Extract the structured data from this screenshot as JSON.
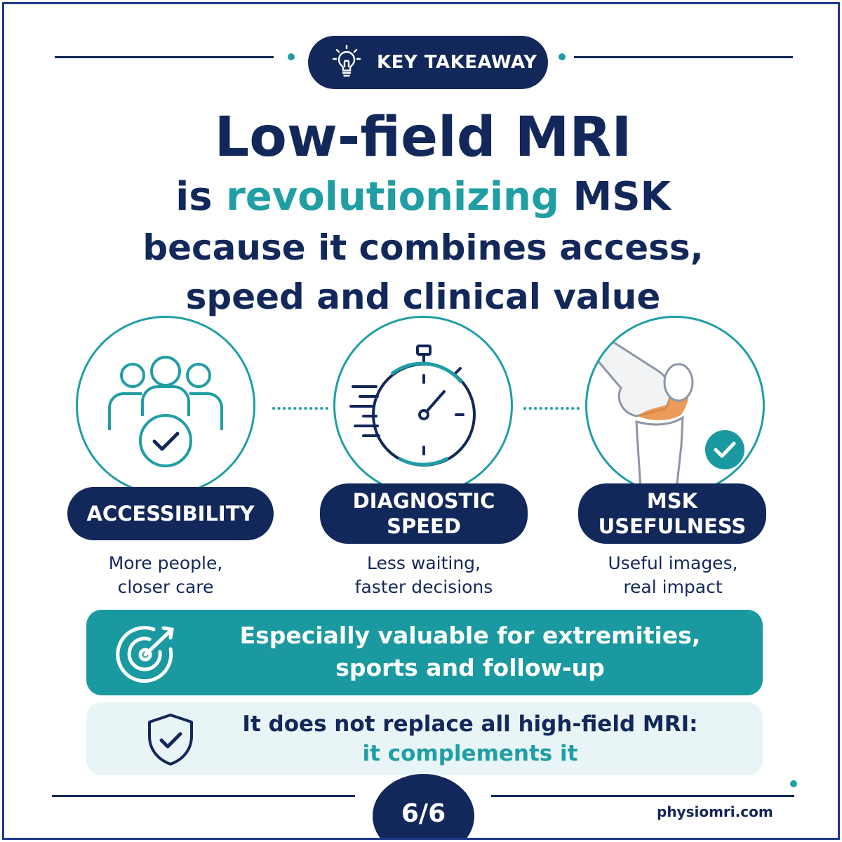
{
  "badge": {
    "label": "KEY TAKEAWAY",
    "icon": "lightbulb-icon"
  },
  "headline": {
    "line1": "Low-field MRI",
    "line2_pre": "is ",
    "line2_accent": "revolutionizing",
    "line2_post": " MSK",
    "line3": "because it combines access,",
    "line4": "speed and clinical value"
  },
  "pillars": [
    {
      "title_line1": "ACCESSIBILITY",
      "title_line2": "",
      "caption_line1": "More people,",
      "caption_line2": "closer care",
      "icon": "people-check-icon"
    },
    {
      "title_line1": "DIAGNOSTIC",
      "title_line2": "SPEED",
      "caption_line1": "Less waiting,",
      "caption_line2": "faster decisions",
      "icon": "stopwatch-icon"
    },
    {
      "title_line1": "MSK",
      "title_line2": "USEFULNESS",
      "caption_line1": "Useful images,",
      "caption_line2": "real impact",
      "icon": "knee-joint-icon"
    }
  ],
  "highlight": {
    "line1": "Especially valuable for extremities,",
    "line2": "sports and follow-up",
    "icon": "target-arrow-icon"
  },
  "note": {
    "line1": "It does not replace all high-field MRI:",
    "line2": "it complements it",
    "icon": "shield-check-icon"
  },
  "footer": {
    "page": "6/6",
    "site": "physiomri.com"
  },
  "colors": {
    "navy": "#13285a",
    "teal": "#1f9ea4",
    "light_teal": "#e8f4f5",
    "orange": "#e8883a"
  }
}
